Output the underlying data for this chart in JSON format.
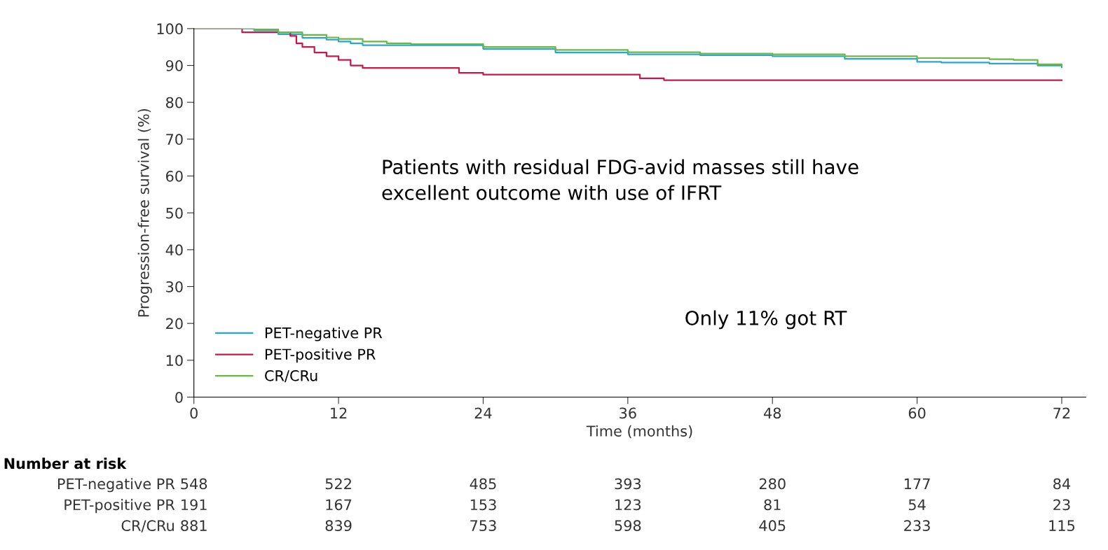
{
  "chart_data": {
    "type": "step",
    "xlabel": "Time (months)",
    "ylabel": "Progression-free survival (%)",
    "xlim": [
      0,
      74
    ],
    "xticks": [
      0,
      12,
      24,
      36,
      48,
      60,
      72
    ],
    "ylim": [
      0,
      100
    ],
    "yticks": [
      0,
      10,
      20,
      30,
      40,
      50,
      60,
      70,
      80,
      90,
      100
    ],
    "legend": "bottom left",
    "grid": false,
    "marker": "none",
    "line_style": "solid",
    "series": [
      {
        "name": "PET-negative PR",
        "color": "#2ba6cf",
        "x": [
          0,
          5,
          7,
          9,
          11,
          12,
          13,
          14,
          18,
          24,
          30,
          36,
          42,
          48,
          54,
          60,
          62,
          66,
          70,
          72
        ],
        "values": [
          100,
          99.5,
          98.5,
          97.5,
          97,
          96.5,
          96,
          95.5,
          95.5,
          94.5,
          93.5,
          93,
          92.8,
          92.5,
          91.8,
          91,
          90.8,
          90.5,
          90,
          89.5
        ]
      },
      {
        "name": "PET-positive PR",
        "color": "#c8184a",
        "x": [
          0,
          4,
          8,
          8.5,
          9,
          10,
          11,
          12,
          13,
          14,
          21,
          22,
          24,
          36,
          37,
          39,
          72
        ],
        "values": [
          100,
          99,
          98,
          96,
          95,
          93.5,
          92.5,
          91.5,
          90,
          89.3,
          89.3,
          88,
          87.5,
          87.5,
          86.5,
          86,
          86
        ]
      },
      {
        "name": "CR/CRu",
        "color": "#6ab843",
        "x": [
          0,
          5,
          7,
          9,
          11,
          12,
          14,
          16,
          18,
          24,
          30,
          36,
          42,
          48,
          54,
          60,
          66,
          68,
          70,
          72
        ],
        "values": [
          100,
          99.8,
          99,
          98.3,
          97.6,
          97.2,
          96.5,
          96,
          95.8,
          95,
          94.2,
          93.6,
          93.2,
          93,
          92.5,
          92,
          91.7,
          91.5,
          90.3,
          90
        ]
      }
    ],
    "annotations": [
      "Patients with residual FDG-avid masses still have",
      "excellent outcome with use of IFRT",
      "Only 11% got RT",
      "Number at risk",
      "PET-negative PR",
      "548",
      "522",
      "485",
      "393",
      "280",
      "177",
      "84",
      "PET-positive PR",
      "191",
      "167",
      "153",
      "123",
      "81",
      "54",
      "23",
      "CR/CRu",
      "881",
      "839",
      "753",
      "598",
      "405",
      "233",
      "115"
    ]
  }
}
